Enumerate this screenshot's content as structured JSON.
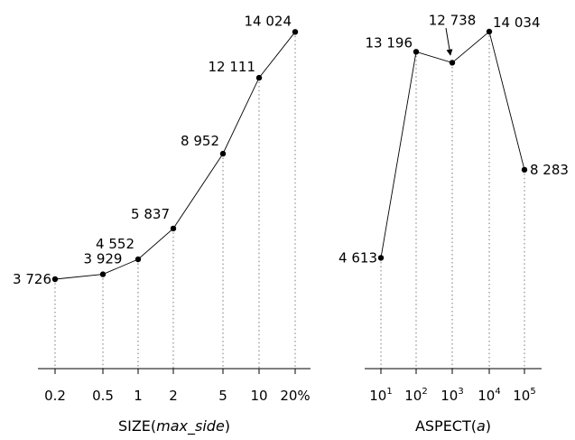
{
  "chart_data": [
    {
      "type": "line",
      "xlabel_main": "SIZE(",
      "xlabel_italic": "max_side",
      "xlabel_close": ")",
      "categories": [
        "0.2",
        "0.5",
        "1",
        "2",
        "5",
        "10",
        "20%"
      ],
      "values": [
        3726,
        3929,
        4552,
        5837,
        8952,
        12111,
        14024
      ],
      "data_labels": [
        "3 726",
        "3 929",
        "4 552",
        "5 837",
        "8 952",
        "12 111",
        "14 024"
      ],
      "ylim": [
        0,
        15000
      ],
      "grid": false
    },
    {
      "type": "line",
      "xlabel_main": "ASPECT(",
      "xlabel_italic": "a",
      "xlabel_close": ")",
      "tick_base": "10",
      "tick_exponents": [
        "1",
        "2",
        "3",
        "4",
        "5"
      ],
      "values": [
        4613,
        13196,
        12738,
        14034,
        8283
      ],
      "data_labels": [
        "4 613",
        "13 196",
        "12 738",
        "14 034",
        "8 283"
      ],
      "ylim": [
        0,
        15000
      ],
      "grid": false
    }
  ]
}
